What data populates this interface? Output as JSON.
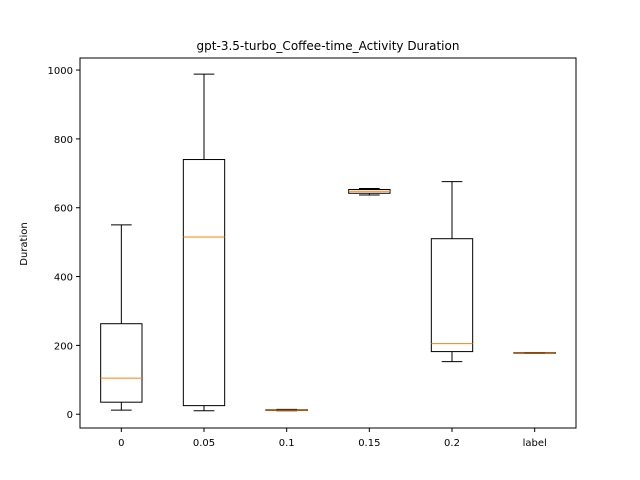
{
  "chart_data": {
    "type": "box",
    "title": "gpt-3.5-turbo_Coffee-time_Activity Duration",
    "xlabel": "",
    "ylabel": "Duration",
    "ylim": [
      -40,
      1035
    ],
    "yticks": [
      0,
      200,
      400,
      600,
      800,
      1000
    ],
    "grid": false,
    "categories": [
      "0",
      "0.05",
      "0.1",
      "0.15",
      "0.2",
      "label"
    ],
    "boxes": [
      {
        "category": "0",
        "min": 12,
        "q1": 35,
        "median": 105,
        "q3": 263,
        "max": 550
      },
      {
        "category": "0.05",
        "min": 10,
        "q1": 25,
        "median": 515,
        "q3": 740,
        "max": 988
      },
      {
        "category": "0.1",
        "min": 10,
        "q1": 11,
        "median": 12,
        "q3": 13,
        "max": 14
      },
      {
        "category": "0.15",
        "min": 637,
        "q1": 642,
        "median": 648,
        "q3": 653,
        "max": 656
      },
      {
        "category": "0.2",
        "min": 153,
        "q1": 182,
        "median": 205,
        "q3": 510,
        "max": 676
      },
      {
        "category": "label",
        "min": 177,
        "q1": 177,
        "median": 178,
        "q3": 179,
        "max": 179
      }
    ],
    "colors": {
      "box": "#000000",
      "median": "#ff7f0e"
    }
  }
}
